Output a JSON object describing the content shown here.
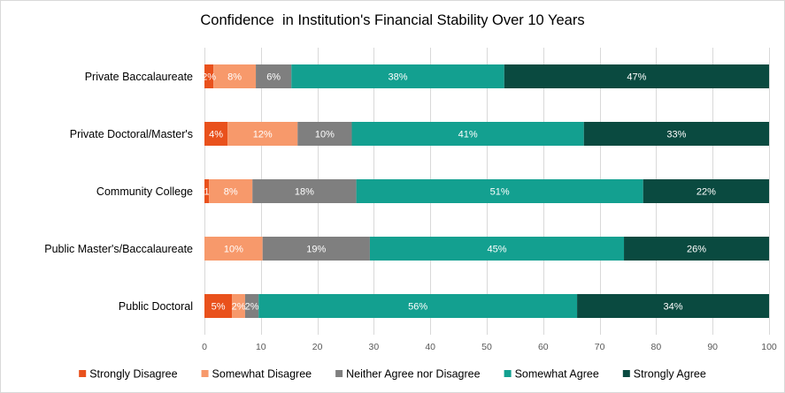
{
  "chart_data": {
    "type": "bar",
    "orientation": "horizontal",
    "stacked": true,
    "title": "Confidence  in Institution's Financial Stability Over 10 Years",
    "categories": [
      "Private Baccalaureate",
      "Private Doctoral/Master's",
      "Community College",
      "Public Master's/Baccalaureate",
      "Public Doctoral"
    ],
    "series": [
      {
        "name": "Strongly Disagree",
        "color": "#E9511C",
        "values": [
          1.6,
          4.1,
          0.8,
          0,
          4.9
        ],
        "labels": [
          "2%",
          "4%",
          "1",
          "",
          "5%"
        ]
      },
      {
        "name": "Somewhat Disagree",
        "color": "#F7996B",
        "values": [
          7.5,
          12.4,
          7.7,
          10.3,
          2.3
        ],
        "labels": [
          "8%",
          "12%",
          "8%",
          "10%",
          "2%"
        ]
      },
      {
        "name": "Neither Agree nor Disagree",
        "color": "#7F7F7F",
        "values": [
          6.3,
          9.6,
          18.4,
          19.0,
          2.4
        ],
        "labels": [
          "6%",
          "10%",
          "18%",
          "19%",
          "2%"
        ]
      },
      {
        "name": "Somewhat Agree",
        "color": "#13A090",
        "values": [
          37.7,
          41.1,
          50.8,
          45.0,
          56.4
        ],
        "labels": [
          "38%",
          "41%",
          "51%",
          "45%",
          "56%"
        ]
      },
      {
        "name": "Strongly Agree",
        "color": "#0A4A40",
        "values": [
          46.9,
          32.8,
          22.3,
          25.7,
          34.0
        ],
        "labels": [
          "47%",
          "33%",
          "22%",
          "26%",
          "34%"
        ]
      }
    ],
    "xlim": [
      0,
      100
    ],
    "xticks": [
      0,
      10,
      20,
      30,
      40,
      50,
      60,
      70,
      80,
      90,
      100
    ],
    "grid": true,
    "legend": "bottom"
  }
}
